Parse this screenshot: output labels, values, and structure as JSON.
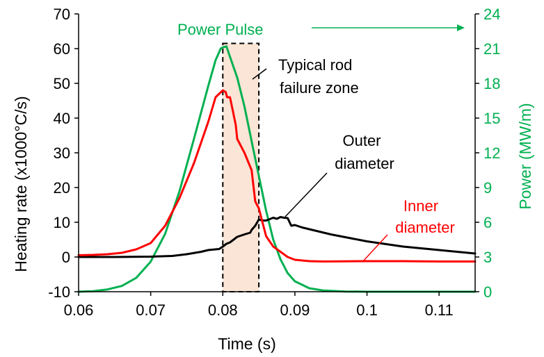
{
  "chart_data": {
    "type": "line",
    "xlabel": "Time (s)",
    "ylabel_left": "Heating rate (x1000°C/s)",
    "ylabel_right": "Power (MW/m)",
    "xlim": [
      0.06,
      0.115
    ],
    "ylim_left": [
      -10,
      70
    ],
    "ylim_right": [
      0,
      24
    ],
    "x_ticks": [
      "0.06",
      "0.07",
      "0.08",
      "0.09",
      "0.1",
      "0.11"
    ],
    "x_tick_values": [
      0.06,
      0.07,
      0.08,
      0.09,
      0.1,
      0.11
    ],
    "y_left_ticks": [
      "-10",
      "0",
      "10",
      "20",
      "30",
      "40",
      "50",
      "60",
      "70"
    ],
    "y_left_tick_values": [
      -10,
      0,
      10,
      20,
      30,
      40,
      50,
      60,
      70
    ],
    "y_right_ticks": [
      "0",
      "3",
      "6",
      "9",
      "12",
      "15",
      "18",
      "21",
      "24"
    ],
    "y_right_tick_values": [
      0,
      3,
      6,
      9,
      12,
      15,
      18,
      21,
      24
    ],
    "grid": false,
    "colors": {
      "inner": "#ff0000",
      "outer": "#000000",
      "power": "#00b050",
      "zone_fill": "#fbe5d6"
    },
    "series": [
      {
        "key": "inner",
        "axis": "left",
        "points": [
          [
            0.06,
            0.5
          ],
          [
            0.062,
            0.6
          ],
          [
            0.064,
            0.8
          ],
          [
            0.066,
            1.2
          ],
          [
            0.068,
            2.2
          ],
          [
            0.07,
            4
          ],
          [
            0.072,
            9
          ],
          [
            0.074,
            17
          ],
          [
            0.076,
            27
          ],
          [
            0.078,
            39
          ],
          [
            0.079,
            46
          ],
          [
            0.08,
            48
          ],
          [
            0.0804,
            47.5
          ],
          [
            0.0806,
            46
          ],
          [
            0.081,
            46
          ],
          [
            0.0814,
            42
          ],
          [
            0.0818,
            38
          ],
          [
            0.082,
            34
          ],
          [
            0.083,
            30
          ],
          [
            0.084,
            25
          ],
          [
            0.0845,
            16
          ],
          [
            0.085,
            14
          ],
          [
            0.0855,
            10
          ],
          [
            0.086,
            6
          ],
          [
            0.087,
            3
          ],
          [
            0.088,
            1.5
          ],
          [
            0.089,
            0
          ],
          [
            0.09,
            -0.8
          ],
          [
            0.092,
            -1.2
          ],
          [
            0.094,
            -1.3
          ],
          [
            0.1,
            -1.2
          ],
          [
            0.105,
            -1.2
          ],
          [
            0.11,
            -1.3
          ],
          [
            0.115,
            -1.3
          ]
        ]
      },
      {
        "key": "outer",
        "axis": "left",
        "points": [
          [
            0.06,
            0
          ],
          [
            0.065,
            0
          ],
          [
            0.07,
            0.1
          ],
          [
            0.073,
            0.3
          ],
          [
            0.075,
            0.8
          ],
          [
            0.077,
            1.5
          ],
          [
            0.078,
            2
          ],
          [
            0.0795,
            2.3
          ],
          [
            0.08,
            3
          ],
          [
            0.0805,
            3.8
          ],
          [
            0.081,
            4.2
          ],
          [
            0.0815,
            5
          ],
          [
            0.082,
            5.8
          ],
          [
            0.083,
            6.5
          ],
          [
            0.0838,
            7
          ],
          [
            0.084,
            7.8
          ],
          [
            0.0845,
            9
          ],
          [
            0.085,
            10.8
          ],
          [
            0.0855,
            10.5
          ],
          [
            0.086,
            10.5
          ],
          [
            0.087,
            11.3
          ],
          [
            0.0875,
            11
          ],
          [
            0.088,
            11.5
          ],
          [
            0.0885,
            11.3
          ],
          [
            0.089,
            11.2
          ],
          [
            0.0895,
            9
          ],
          [
            0.09,
            9.2
          ],
          [
            0.091,
            8.5
          ],
          [
            0.093,
            7.5
          ],
          [
            0.095,
            6.5
          ],
          [
            0.1,
            4.5
          ],
          [
            0.105,
            3
          ],
          [
            0.11,
            2
          ],
          [
            0.115,
            1
          ]
        ]
      },
      {
        "key": "power",
        "axis": "right",
        "points": [
          [
            0.06,
            0
          ],
          [
            0.062,
            0.05
          ],
          [
            0.064,
            0.2
          ],
          [
            0.066,
            0.5
          ],
          [
            0.068,
            1.2
          ],
          [
            0.07,
            2.6
          ],
          [
            0.072,
            5
          ],
          [
            0.074,
            8.7
          ],
          [
            0.076,
            13.2
          ],
          [
            0.078,
            17.8
          ],
          [
            0.079,
            20
          ],
          [
            0.0797,
            21
          ],
          [
            0.08,
            21.1
          ],
          [
            0.0805,
            21.2
          ],
          [
            0.081,
            20.3
          ],
          [
            0.082,
            18.5
          ],
          [
            0.083,
            16
          ],
          [
            0.084,
            13
          ],
          [
            0.085,
            10
          ],
          [
            0.086,
            7
          ],
          [
            0.087,
            4.5
          ],
          [
            0.088,
            2.8
          ],
          [
            0.089,
            1.6
          ],
          [
            0.09,
            0.9
          ],
          [
            0.092,
            0.3
          ],
          [
            0.094,
            0.1
          ],
          [
            0.097,
            0.02
          ],
          [
            0.1,
            0
          ],
          [
            0.115,
            0
          ]
        ]
      }
    ],
    "annotations": {
      "power_pulse": "Power Pulse",
      "zone_line1": "Typical rod",
      "zone_line2": "failure zone",
      "outer_line1": "Outer",
      "outer_line2": "diameter",
      "inner_line1": "Inner",
      "inner_line2": "diameter"
    },
    "zone": {
      "x0": 0.08,
      "x1": 0.085,
      "y0": -10,
      "y1": 61.5
    }
  }
}
